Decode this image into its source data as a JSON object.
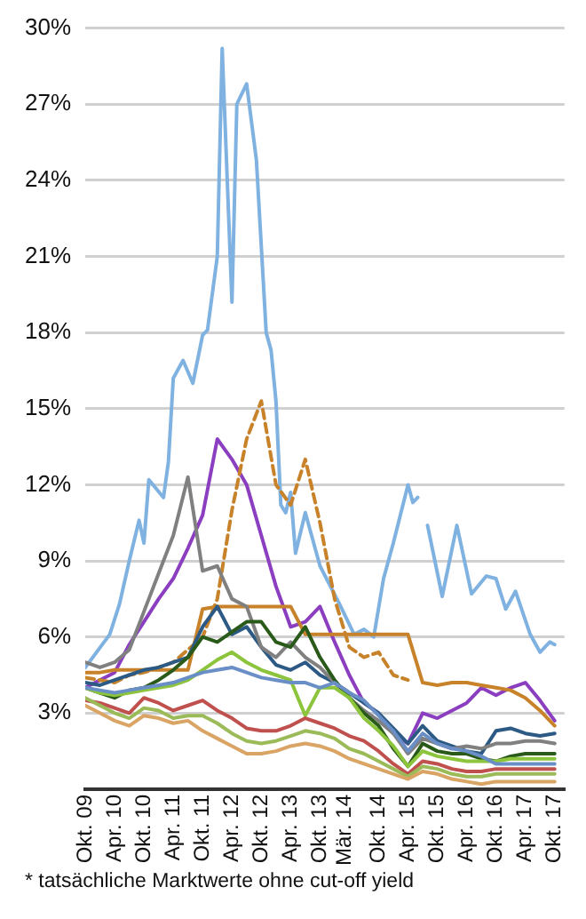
{
  "chart_data": {
    "type": "line",
    "annotations": [
      "* tatsächliche Marktwerte ohne cut-off yield"
    ],
    "x": [
      "2009-10",
      "2010-01",
      "2010-04",
      "2010-07",
      "2010-10",
      "2011-01",
      "2011-04",
      "2011-07",
      "2011-10",
      "2012-01",
      "2012-04",
      "2012-07",
      "2012-10",
      "2013-01",
      "2013-04",
      "2013-07",
      "2013-10",
      "2014-01",
      "2014-04",
      "2014-07",
      "2014-10",
      "2015-01",
      "2015-04",
      "2015-07",
      "2015-10",
      "2016-01",
      "2016-04",
      "2016-07",
      "2016-10",
      "2017-01",
      "2017-04",
      "2017-07",
      "2017-10"
    ],
    "xlim": [
      "2009-10",
      "2017-12"
    ],
    "xticks": [
      {
        "value": "2009-10",
        "label": "Okt. 09"
      },
      {
        "value": "2010-04",
        "label": "Apr. 10"
      },
      {
        "value": "2010-10",
        "label": "Okt. 10"
      },
      {
        "value": "2011-04",
        "label": "Apr. 11"
      },
      {
        "value": "2011-10",
        "label": "Okt. 11"
      },
      {
        "value": "2012-04",
        "label": "Apr. 12"
      },
      {
        "value": "2012-10",
        "label": "Okt. 12"
      },
      {
        "value": "2013-04",
        "label": "Apr. 13"
      },
      {
        "value": "2013-10",
        "label": "Okt. 13"
      },
      {
        "value": "2014-03",
        "label": "Mär. 14"
      },
      {
        "value": "2014-10",
        "label": "Okt. 14"
      },
      {
        "value": "2015-04",
        "label": "Apr. 15"
      },
      {
        "value": "2015-10",
        "label": "Okt. 15"
      },
      {
        "value": "2016-04",
        "label": "Apr. 16"
      },
      {
        "value": "2016-10",
        "label": "Okt. 16"
      },
      {
        "value": "2017-04",
        "label": "Apr. 17"
      },
      {
        "value": "2017-10",
        "label": "Okt. 17"
      }
    ],
    "ylim": [
      0,
      30
    ],
    "yticks": [
      {
        "value": 3,
        "label": "3%"
      },
      {
        "value": 6,
        "label": "6%"
      },
      {
        "value": 9,
        "label": "9%"
      },
      {
        "value": 12,
        "label": "12%"
      },
      {
        "value": 15,
        "label": "15%"
      },
      {
        "value": 18,
        "label": "18%"
      },
      {
        "value": 21,
        "label": "21%"
      },
      {
        "value": 24,
        "label": "24%"
      },
      {
        "value": 27,
        "label": "27%"
      },
      {
        "value": 30,
        "label": "30%"
      }
    ],
    "grid": "y",
    "marker": "none",
    "line_style": "solid",
    "series": [
      {
        "color": "#d9a464",
        "values": [
          3.3,
          3.0,
          2.7,
          2.5,
          2.9,
          2.8,
          2.6,
          2.7,
          2.3,
          2.0,
          1.7,
          1.4,
          1.4,
          1.5,
          1.7,
          1.8,
          1.7,
          1.5,
          1.2,
          1.0,
          0.8,
          0.6,
          0.4,
          0.7,
          0.6,
          0.4,
          0.3,
          0.2,
          0.3,
          0.3,
          0.3,
          0.3,
          0.3
        ]
      },
      {
        "color": "#9bbb59",
        "values": [
          3.6,
          3.3,
          3.0,
          2.8,
          3.2,
          3.1,
          2.8,
          2.9,
          2.9,
          2.6,
          2.2,
          1.9,
          1.8,
          1.9,
          2.1,
          2.3,
          2.2,
          2.0,
          1.6,
          1.4,
          1.1,
          0.8,
          0.5,
          0.9,
          0.8,
          0.6,
          0.5,
          0.5,
          0.6,
          0.6,
          0.6,
          0.6,
          0.6
        ]
      },
      {
        "color": "#c0504d",
        "values": [
          3.5,
          3.4,
          3.2,
          3.0,
          3.6,
          3.4,
          3.1,
          3.3,
          3.5,
          3.1,
          2.8,
          2.4,
          2.3,
          2.3,
          2.5,
          2.8,
          2.6,
          2.4,
          2.1,
          1.9,
          1.5,
          1.0,
          0.6,
          1.1,
          1.0,
          0.8,
          0.7,
          0.7,
          0.8,
          0.8,
          0.8,
          0.8,
          0.8
        ]
      },
      {
        "color": "#6a8fc7",
        "values": [
          4.0,
          3.9,
          3.8,
          3.9,
          4.0,
          4.1,
          4.2,
          4.4,
          4.6,
          4.7,
          4.8,
          4.6,
          4.4,
          4.3,
          4.2,
          4.2,
          4.0,
          4.2,
          3.8,
          3.5,
          2.9,
          2.3,
          1.5,
          2.2,
          1.8,
          1.6,
          1.5,
          1.3,
          1.0,
          1.0,
          1.0,
          1.0,
          1.0
        ]
      },
      {
        "color": "#8cc43c",
        "values": [
          4.0,
          3.8,
          3.7,
          3.8,
          3.9,
          4.0,
          4.1,
          4.3,
          4.7,
          5.1,
          5.4,
          5.0,
          4.7,
          4.5,
          4.3,
          2.9,
          4.0,
          4.0,
          3.6,
          2.8,
          2.3,
          1.7,
          0.9,
          1.5,
          1.3,
          1.2,
          1.1,
          1.1,
          1.1,
          1.2,
          1.2,
          1.2,
          1.2
        ]
      },
      {
        "color": "#2a5a1a",
        "values": [
          4.0,
          3.8,
          3.6,
          3.9,
          4.0,
          4.3,
          4.7,
          5.2,
          6.0,
          5.8,
          6.2,
          6.6,
          6.6,
          5.8,
          5.6,
          6.4,
          5.2,
          4.3,
          3.6,
          3.0,
          2.5,
          1.6,
          0.9,
          1.8,
          1.5,
          1.4,
          1.4,
          1.2,
          1.1,
          1.3,
          1.4,
          1.4,
          1.4
        ]
      },
      {
        "color": "#808080",
        "values": [
          5.0,
          4.8,
          5.0,
          5.5,
          7.0,
          8.5,
          10.0,
          12.3,
          8.6,
          8.8,
          7.5,
          7.2,
          5.6,
          5.2,
          5.8,
          5.2,
          4.8,
          4.2,
          3.6,
          3.1,
          2.7,
          2.2,
          1.4,
          2.0,
          1.8,
          1.6,
          1.7,
          1.6,
          1.8,
          1.8,
          1.9,
          1.9,
          1.8
        ]
      },
      {
        "color": "#2c5a85",
        "values": [
          4.2,
          4.1,
          4.3,
          4.5,
          4.7,
          4.8,
          5.0,
          5.2,
          6.4,
          7.2,
          6.1,
          6.4,
          5.6,
          4.9,
          4.7,
          5.0,
          4.5,
          4.2,
          3.8,
          3.4,
          3.0,
          2.4,
          1.8,
          2.5,
          1.9,
          1.7,
          1.5,
          1.4,
          2.3,
          2.4,
          2.2,
          2.1,
          2.2
        ]
      },
      {
        "color": "#c8822a",
        "values": [
          4.6,
          4.6,
          4.7,
          4.7,
          4.7,
          4.7,
          4.7,
          4.7,
          7.1,
          7.2,
          7.2,
          7.2,
          7.2,
          7.2,
          7.2,
          6.1,
          6.1,
          6.1,
          6.1,
          6.1,
          6.1,
          6.1,
          6.1,
          4.2,
          4.1,
          4.2,
          4.2,
          4.1,
          4.0,
          3.9,
          3.6,
          3.1,
          2.5
        ]
      },
      {
        "color": "#c8822a",
        "line_style": "dashed",
        "values": [
          4.4,
          4.3,
          4.2,
          4.5,
          4.6,
          4.8,
          5.0,
          5.5,
          6.0,
          7.5,
          11.0,
          13.8,
          15.3,
          12.0,
          11.2,
          13.0,
          10.5,
          7.5,
          5.6,
          5.2,
          5.4,
          4.5,
          4.3,
          null,
          null,
          null,
          null,
          null,
          null,
          null,
          null,
          null,
          null
        ]
      },
      {
        "color": "#8b3fc0",
        "values": [
          4.0,
          4.3,
          4.6,
          5.7,
          6.6,
          7.5,
          8.3,
          9.5,
          10.8,
          13.8,
          13.0,
          12.0,
          10.0,
          8.0,
          6.4,
          6.6,
          7.2,
          5.8,
          4.5,
          3.4,
          3.0,
          2.2,
          1.8,
          3.0,
          2.8,
          3.1,
          3.4,
          4.0,
          3.7,
          4.0,
          4.2,
          3.5,
          2.7
        ]
      },
      {
        "color": "#7fb2e0",
        "x": [
          "2009-10",
          "2010-03",
          "2010-05",
          "2010-07",
          "2010-09",
          "2010-10",
          "2010-11",
          "2011-02",
          "2011-03",
          "2011-04",
          "2011-06",
          "2011-08",
          "2011-10",
          "2011-11",
          "2012-01",
          "2012-02",
          "2012-04",
          "2012-05",
          "2012-07",
          "2012-09",
          "2012-11",
          "2012-12",
          "2013-01",
          "2013-02",
          "2013-03",
          "2013-04",
          "2013-05",
          "2013-07",
          "2013-08",
          "2013-10",
          "2014-02",
          "2014-05",
          "2014-07",
          "2014-09",
          "2014-11",
          "2015-01",
          "2015-04",
          "2015-05",
          "2015-06",
          "2015-07",
          "2015-08",
          "2015-11",
          "2016-02",
          "2016-05",
          "2016-08",
          "2016-10",
          "2016-12",
          "2017-02",
          "2017-05",
          "2017-07",
          "2017-09",
          "2017-10"
        ],
        "values": [
          4.8,
          6.1,
          7.3,
          9.0,
          10.6,
          9.7,
          12.2,
          11.5,
          12.9,
          16.2,
          16.9,
          16.0,
          17.9,
          18.1,
          21.0,
          29.2,
          19.2,
          27.0,
          27.8,
          24.8,
          18.0,
          17.3,
          15.3,
          11.2,
          10.9,
          11.7,
          9.3,
          10.9,
          10.2,
          8.8,
          7.3,
          6.1,
          6.3,
          6.0,
          8.3,
          9.7,
          12.0,
          11.3,
          11.5,
          null,
          10.4,
          7.6,
          10.4,
          7.7,
          8.4,
          8.3,
          7.1,
          7.8,
          6.1,
          5.4,
          5.8,
          5.7
        ]
      }
    ]
  }
}
